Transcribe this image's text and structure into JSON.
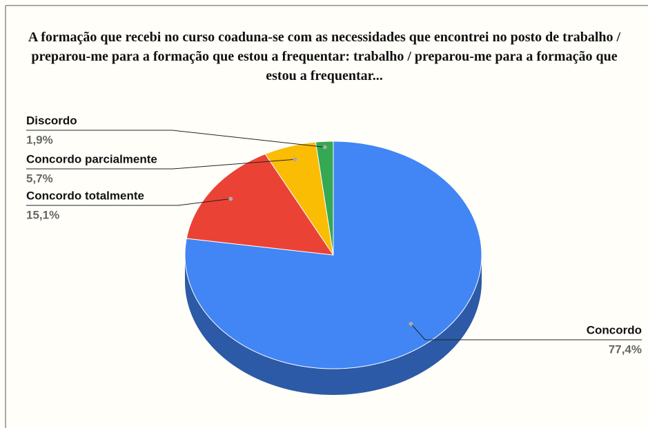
{
  "chart_data": {
    "type": "pie3d",
    "title": "A formação que recebi no curso coaduna-se com as necessidades que encontrei no posto de trabalho / preparou-me para a formação que estou a frequentar: trabalho / preparou-me para a formação que estou a frequentar...",
    "categories": [
      "Concordo",
      "Concordo totalmente",
      "Concordo parcialmente",
      "Discordo"
    ],
    "values": [
      77.4,
      15.1,
      5.7,
      1.9
    ],
    "value_labels": [
      "77,4%",
      "15,1%",
      "5,7%",
      "1,9%"
    ],
    "colors": [
      "#4285f4",
      "#ea4335",
      "#fbbc04",
      "#34a853"
    ]
  }
}
